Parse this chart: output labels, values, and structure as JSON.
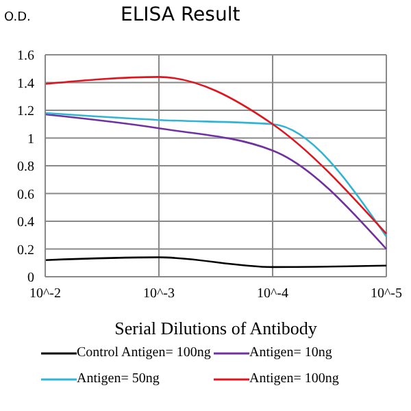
{
  "chart_data": {
    "type": "line",
    "title": "ELISA Result",
    "ylabel": "O.D.",
    "xlabel": "Serial Dilutions of Antibody",
    "categories": [
      "10^-2",
      "10^-3",
      "10^-4",
      "10^-5"
    ],
    "series": [
      {
        "name": "Control Antigen= 100ng",
        "color": "#000000",
        "values": [
          0.12,
          0.14,
          0.07,
          0.08
        ]
      },
      {
        "name": "Antigen= 10ng",
        "color": "#7030a0",
        "values": [
          1.17,
          1.07,
          0.91,
          0.2
        ]
      },
      {
        "name": "Antigen= 50ng",
        "color": "#2fb4d6",
        "values": [
          1.18,
          1.13,
          1.1,
          0.29
        ]
      },
      {
        "name": "Antigen= 100ng",
        "color": "#e0141e",
        "values": [
          1.39,
          1.44,
          1.1,
          0.31
        ]
      }
    ],
    "ylim": [
      0,
      1.6
    ],
    "yticks": [
      0,
      0.2,
      0.4,
      0.6,
      0.8,
      1,
      1.2,
      1.4,
      1.6
    ],
    "grid": true,
    "legend": "bottom",
    "marker": "none",
    "line_style": "solid"
  }
}
